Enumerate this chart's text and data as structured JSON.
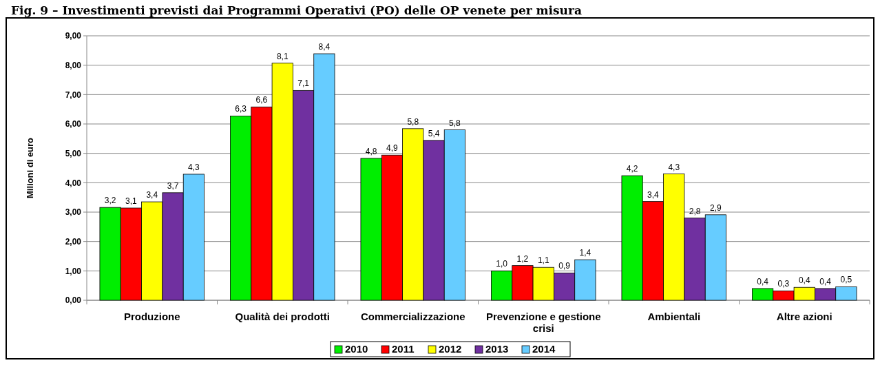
{
  "chart_data": {
    "type": "bar",
    "title": "Fig. 9 – Investimenti previsti dai Programmi Operativi (PO) delle OP venete per misura",
    "ylabel": "Milioni di euro",
    "categories": [
      "Produzione",
      "Qualità dei prodotti",
      "Commercializzazione",
      "Prevenzione e gestione crisi",
      "Ambientali",
      "Altre azioni"
    ],
    "series": [
      {
        "name": "2010",
        "color": "#00ee00",
        "values": [
          3.16,
          6.27,
          4.83,
          1.0,
          4.24,
          0.4
        ],
        "value_labels": [
          "3,2",
          "6,3",
          "4,8",
          "1,0",
          "4,2",
          "0,4"
        ]
      },
      {
        "name": "2011",
        "color": "#ff0000",
        "values": [
          3.14,
          6.58,
          4.94,
          1.18,
          3.36,
          0.32
        ],
        "value_labels": [
          "3,1",
          "6,6",
          "4,9",
          "1,2",
          "3,4",
          "0,3"
        ]
      },
      {
        "name": "2012",
        "color": "#ffff00",
        "values": [
          3.35,
          8.07,
          5.84,
          1.12,
          4.3,
          0.44
        ],
        "value_labels": [
          "3,4",
          "8,1",
          "5,8",
          "1,1",
          "4,3",
          "0,4"
        ]
      },
      {
        "name": "2013",
        "color": "#7030a0",
        "values": [
          3.66,
          7.14,
          5.44,
          0.93,
          2.8,
          0.4
        ],
        "value_labels": [
          "3,7",
          "7,1",
          "5,4",
          "0,9",
          "2,8",
          "0,4"
        ]
      },
      {
        "name": "2014",
        "color": "#66ccff",
        "values": [
          4.29,
          8.39,
          5.8,
          1.38,
          2.91,
          0.46
        ],
        "value_labels": [
          "4,3",
          "8,4",
          "5,8",
          "1,4",
          "2,9",
          "0,5"
        ]
      }
    ],
    "ylim": [
      0,
      9
    ],
    "yticks": [
      {
        "value": 0,
        "label": "0,00"
      },
      {
        "value": 1,
        "label": "1,00"
      },
      {
        "value": 2,
        "label": "2,00"
      },
      {
        "value": 3,
        "label": "3,00"
      },
      {
        "value": 4,
        "label": "4,00"
      },
      {
        "value": 5,
        "label": "5,00"
      },
      {
        "value": 6,
        "label": "6,00"
      },
      {
        "value": 7,
        "label": "7,00"
      },
      {
        "value": 8,
        "label": "8,00"
      },
      {
        "value": 9,
        "label": "9,00"
      }
    ],
    "grid": "y",
    "legend": "bottom"
  }
}
